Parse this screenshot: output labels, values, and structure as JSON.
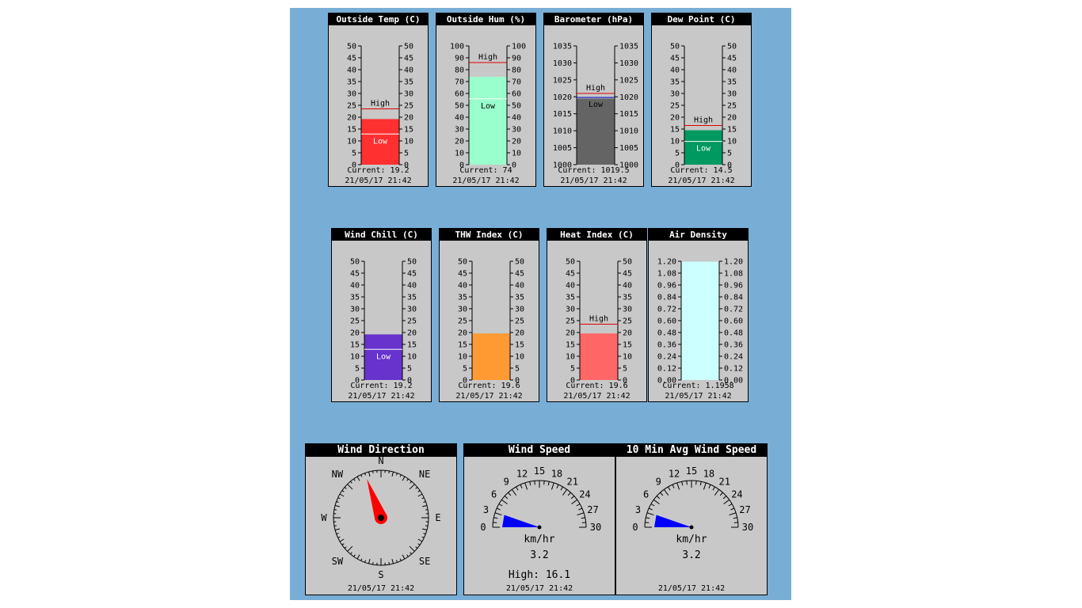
{
  "colors": {
    "background": "#78aed6",
    "panel": "#c8c8c8",
    "high_line": "#e00000",
    "low_line": "#ffffff"
  },
  "thermometers": [
    {
      "title": "Outside Temp (C)",
      "ticks": [
        "0",
        "5",
        "10",
        "15",
        "20",
        "25",
        "30",
        "35",
        "40",
        "45",
        "50"
      ],
      "min": 0,
      "max": 50,
      "value": 19.2,
      "high": 23.5,
      "low": 12.9,
      "fill": "#ff3030",
      "high_label": "High",
      "low_label": "Low",
      "current_text": "Current: 19.2",
      "timestamp": "21/05/17  21:42"
    },
    {
      "title": "Outside Hum (%)",
      "ticks": [
        "0",
        "10",
        "20",
        "30",
        "40",
        "50",
        "60",
        "70",
        "80",
        "90",
        "100"
      ],
      "min": 0,
      "max": 100,
      "value": 74,
      "high": 86,
      "low": 55.5,
      "fill": "#99ffcc",
      "high_label": "High",
      "low_label": "Low",
      "current_text": "Current: 74",
      "timestamp": "21/05/17  21:42"
    },
    {
      "title": "Barometer (hPa)",
      "ticks": [
        "1000",
        "1005",
        "1010",
        "1015",
        "1020",
        "1025",
        "1030",
        "1035"
      ],
      "min": 1000,
      "max": 1035,
      "value": 1019.5,
      "high": 1021,
      "low": 1019.8,
      "fill": "#646464",
      "high_label": "High",
      "low_label": "Low",
      "current_text": "Current: 1019.5",
      "timestamp": "21/05/17  21:42"
    },
    {
      "title": "Dew Point (C)",
      "ticks": [
        "0",
        "5",
        "10",
        "15",
        "20",
        "25",
        "30",
        "35",
        "40",
        "45",
        "50"
      ],
      "min": 0,
      "max": 50,
      "value": 14.5,
      "high": 16.5,
      "low": 9.8,
      "fill": "#009960",
      "high_label": "High",
      "low_label": "Low",
      "current_text": "Current: 14.5",
      "timestamp": "21/05/17  21:42"
    },
    {
      "title": "Wind Chill (C)",
      "ticks": [
        "0",
        "5",
        "10",
        "15",
        "20",
        "25",
        "30",
        "35",
        "40",
        "45",
        "50"
      ],
      "min": 0,
      "max": 50,
      "value": 19.2,
      "high": null,
      "low": 12.9,
      "fill": "#6633cc",
      "high_label": "",
      "low_label": "Low",
      "current_text": "Current: 19.2",
      "timestamp": "21/05/17  21:42"
    },
    {
      "title": "THW Index (C)",
      "ticks": [
        "0",
        "5",
        "10",
        "15",
        "20",
        "25",
        "30",
        "35",
        "40",
        "45",
        "50"
      ],
      "min": 0,
      "max": 50,
      "value": 19.6,
      "high": null,
      "low": null,
      "fill": "#ff9933",
      "high_label": "",
      "low_label": "",
      "current_text": "Current: 19.6",
      "timestamp": "21/05/17  21:42"
    },
    {
      "title": "Heat Index (C)",
      "ticks": [
        "0",
        "5",
        "10",
        "15",
        "20",
        "25",
        "30",
        "35",
        "40",
        "45",
        "50"
      ],
      "min": 0,
      "max": 50,
      "value": 19.6,
      "high": 23.5,
      "low": null,
      "fill": "#ff6666",
      "high_label": "High",
      "low_label": "",
      "current_text": "Current: 19.6",
      "timestamp": "21/05/17  21:42"
    },
    {
      "title": "Air Density",
      "ticks": [
        "0.00",
        "0.12",
        "0.24",
        "0.36",
        "0.48",
        "0.60",
        "0.72",
        "0.84",
        "0.96",
        "1.08",
        "1.20"
      ],
      "min": 0,
      "max": 1.2,
      "value": 1.1958,
      "high": null,
      "low": null,
      "fill": "#ccffff",
      "high_label": "",
      "low_label": "",
      "current_text": "Current: 1.1958",
      "timestamp": "21/05/17  21:42"
    }
  ],
  "compass": {
    "title": "Wind Direction",
    "labels": {
      "n": "N",
      "ne": "NE",
      "e": "E",
      "se": "SE",
      "s": "S",
      "sw": "SW",
      "w": "W",
      "nw": "NW"
    },
    "direction_deg": 340,
    "needle_color": "#ff0000",
    "timestamp": "21/05/17  21:42"
  },
  "gauges": [
    {
      "title": "Wind Speed",
      "ticks": [
        "0",
        "3",
        "6",
        "9",
        "12",
        "15",
        "18",
        "21",
        "24",
        "27",
        "30"
      ],
      "max": 30,
      "value": 3.2,
      "unit": "km/hr",
      "value_text": "3.2",
      "high_text": "High: 16.1",
      "wedge_color": "#0000ff",
      "timestamp": "21/05/17  21:42"
    },
    {
      "title": "10 Min Avg Wind Speed",
      "ticks": [
        "0",
        "3",
        "6",
        "9",
        "12",
        "15",
        "18",
        "21",
        "24",
        "27",
        "30"
      ],
      "max": 30,
      "value": 3.2,
      "unit": "km/hr",
      "value_text": "3.2",
      "high_text": "",
      "wedge_color": "#0000ff",
      "timestamp": "21/05/17  21:42"
    }
  ]
}
